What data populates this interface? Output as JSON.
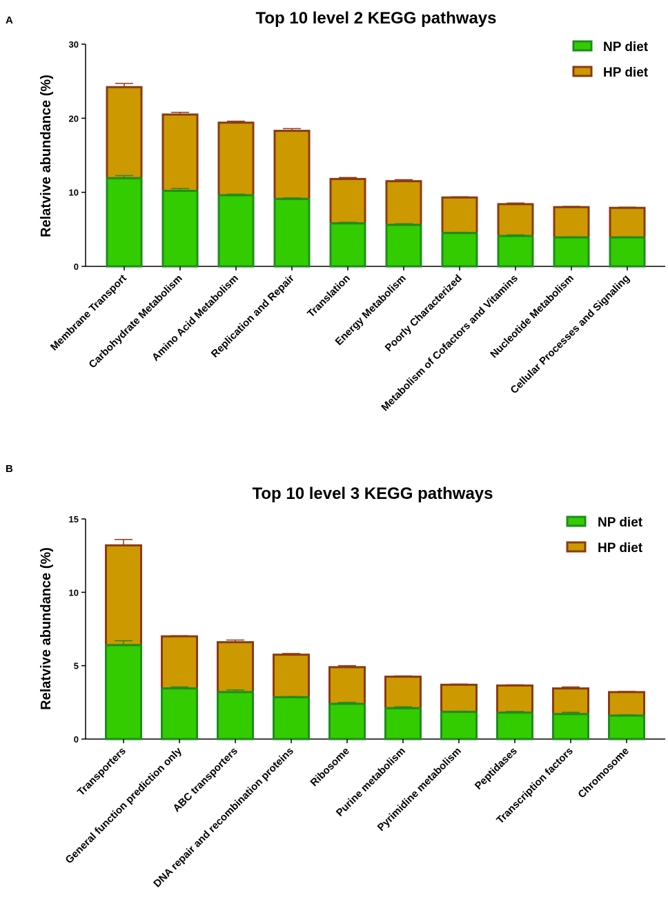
{
  "colors": {
    "np_fill": "#33cc00",
    "np_stroke": "#1e8c1e",
    "hp_fill": "#cc9900",
    "hp_stroke": "#8b3a12",
    "axis": "#000000"
  },
  "chart_data": [
    {
      "type": "bar",
      "stacked": true,
      "panel_label": "A",
      "title": "Top 10 level 2 KEGG pathways",
      "xlabel": "",
      "ylabel": "Relatvive abundance (%)",
      "ylim": [
        0,
        30
      ],
      "yticks": [
        "0",
        "10",
        "20",
        "30"
      ],
      "legend_position": "top-right",
      "categories": [
        "Membrane Transport",
        "Carbohydrate Metabolism",
        "Amino Acid Metabolism",
        "Replication and Repair",
        "Translation",
        "Energy Metabolism",
        "Poorly Characterized",
        "Metabolism of Cofactors and Vitamins",
        "Nucleotide Metabolism",
        "Cellular Processes and Signaling"
      ],
      "series": [
        {
          "name": "NP diet",
          "values": [
            11.9,
            10.2,
            9.6,
            9.1,
            5.8,
            5.6,
            4.5,
            4.1,
            3.9,
            3.9
          ],
          "errors": [
            0.35,
            0.3,
            0.15,
            0.15,
            0.15,
            0.15,
            0.1,
            0.15,
            0.1,
            0.1
          ]
        },
        {
          "name": "HP diet",
          "values": [
            12.3,
            10.3,
            9.8,
            9.2,
            6.0,
            5.9,
            4.8,
            4.3,
            4.1,
            4.0
          ],
          "errors": [
            0.5,
            0.3,
            0.2,
            0.3,
            0.2,
            0.2,
            0.1,
            0.15,
            0.1,
            0.1
          ]
        }
      ]
    },
    {
      "type": "bar",
      "stacked": true,
      "panel_label": "B",
      "title": "Top 10 level 3 KEGG pathways",
      "xlabel": "",
      "ylabel": "Relatvive abundance (%)",
      "ylim": [
        0,
        15
      ],
      "yticks": [
        "0",
        "5",
        "10",
        "15"
      ],
      "legend_position": "top-right",
      "categories": [
        "Transporters",
        "General function prediction only",
        "ABC transporters",
        "DNA repair and recombination proteins",
        "Ribosome",
        "Purine metabolism",
        "Pyrimidine metabolism",
        "Peptidases",
        "Transcription factors",
        "Chromosome"
      ],
      "series": [
        {
          "name": "NP diet",
          "values": [
            6.4,
            3.45,
            3.2,
            2.85,
            2.4,
            2.1,
            1.85,
            1.8,
            1.7,
            1.6
          ],
          "errors": [
            0.3,
            0.1,
            0.15,
            0.05,
            0.1,
            0.1,
            0.05,
            0.08,
            0.12,
            0.05
          ]
        },
        {
          "name": "HP diet",
          "values": [
            6.8,
            3.55,
            3.4,
            2.9,
            2.5,
            2.15,
            1.85,
            1.85,
            1.75,
            1.6
          ],
          "errors": [
            0.4,
            0.05,
            0.15,
            0.08,
            0.1,
            0.05,
            0.05,
            0.05,
            0.1,
            0.05
          ]
        }
      ]
    }
  ]
}
